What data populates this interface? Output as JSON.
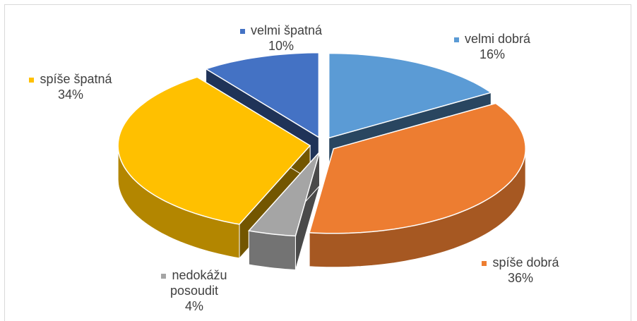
{
  "chart_data": {
    "type": "pie3d",
    "categories": [
      "velmi dobrá",
      "spíše dobrá",
      "nedokážu posoudit",
      "spíše špatná",
      "velmi špatná"
    ],
    "values": [
      16,
      36,
      4,
      34,
      10
    ],
    "value_labels": [
      "16%",
      "36%",
      "4%",
      "34%",
      "10%"
    ],
    "colors": [
      "#5b9bd5",
      "#ed7d31",
      "#a5a5a5",
      "#ffc000",
      "#4472c4"
    ]
  }
}
